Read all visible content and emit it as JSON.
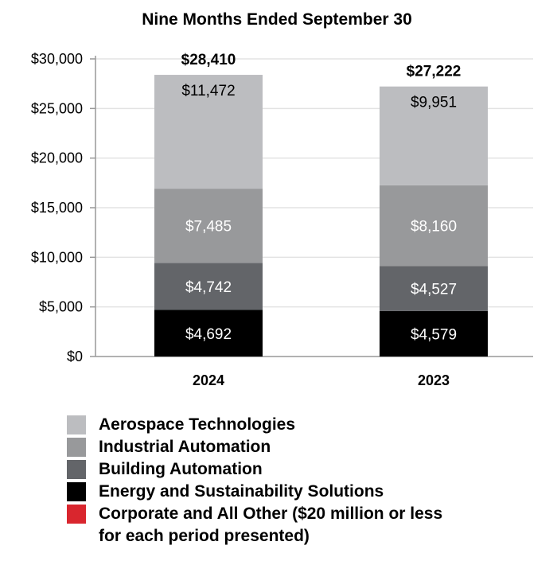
{
  "chart_data": {
    "type": "bar",
    "stacked": true,
    "title": "Nine Months Ended September 30",
    "xlabel": "",
    "ylabel": "",
    "ylim": [
      0,
      30000
    ],
    "yticks": [
      0,
      5000,
      10000,
      15000,
      20000,
      25000,
      30000
    ],
    "ytick_labels": [
      "$0",
      "$5,000",
      "$10,000",
      "$15,000",
      "$20,000",
      "$25,000",
      "$30,000"
    ],
    "grid": true,
    "categories": [
      "2024",
      "2023"
    ],
    "totals": [
      28410,
      27222
    ],
    "total_labels": [
      "$28,410",
      "$27,222"
    ],
    "series": [
      {
        "name": "Energy and Sustainability Solutions",
        "color": "#000000",
        "values": [
          4692,
          4579
        ],
        "labels": [
          "$4,692",
          "$4,579"
        ],
        "label_color": "#ffffff"
      },
      {
        "name": "Building Automation",
        "color": "#636569",
        "values": [
          4742,
          4527
        ],
        "labels": [
          "$4,742",
          "$4,527"
        ],
        "label_color": "#ffffff"
      },
      {
        "name": "Industrial Automation",
        "color": "#98999b",
        "values": [
          7485,
          8160
        ],
        "labels": [
          "$7,485",
          "$8,160"
        ],
        "label_color": "#ffffff"
      },
      {
        "name": "Aerospace Technologies",
        "color": "#bcbdc0",
        "values": [
          11472,
          9951
        ],
        "labels": [
          "$11,472",
          "$9,951"
        ],
        "label_color": "#000000"
      }
    ],
    "legend": [
      {
        "name": "Aerospace Technologies",
        "color": "#bcbdc0"
      },
      {
        "name": "Industrial Automation",
        "color": "#98999b"
      },
      {
        "name": "Building Automation",
        "color": "#636569"
      },
      {
        "name": "Energy and Sustainability Solutions",
        "color": "#000000"
      },
      {
        "name": "Corporate and All Other ($20 million or less",
        "color": "#d9262e",
        "continuation": "for each period presented)"
      }
    ],
    "legend_placement": "bottom-left"
  }
}
